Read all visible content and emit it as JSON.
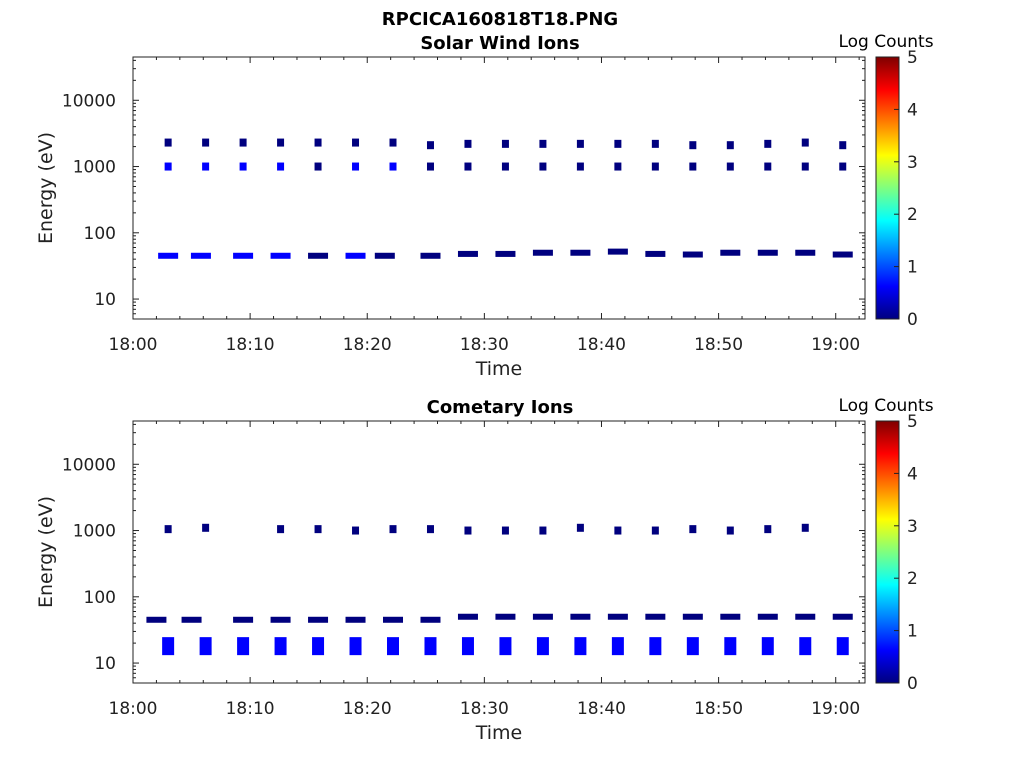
{
  "figure": {
    "title": "RPCICA160818T18.PNG"
  },
  "colorbar": {
    "label": "Log Counts",
    "ticks": [
      "0",
      "1",
      "2",
      "3",
      "4",
      "5"
    ],
    "range": [
      0,
      5
    ],
    "colors": [
      "#00007f",
      "#0000ff",
      "#007fff",
      "#00ffff",
      "#7fff7f",
      "#ffff00",
      "#ff7f00",
      "#ff0000",
      "#7f0000"
    ]
  },
  "marker_color": "#00007f",
  "chart_data": [
    {
      "type": "heatmap",
      "title": "Solar Wind Ions",
      "xlabel": "Time",
      "ylabel": "Energy (eV)",
      "x_ticks": [
        "18:00",
        "18:10",
        "18:20",
        "18:30",
        "18:40",
        "18:50",
        "19:00"
      ],
      "x_range_minutes": [
        0,
        62.5
      ],
      "y_ticks": [
        "10",
        "100",
        "1000",
        "10000"
      ],
      "y_scale": "log",
      "y_range": [
        5,
        45000
      ],
      "grid": false,
      "series": [
        {
          "name": "",
          "minutes": [
            3.0,
            6.2,
            9.4,
            12.6,
            15.8,
            19.0,
            22.2,
            25.4,
            28.6,
            31.8,
            35.0,
            38.2,
            41.4,
            44.6,
            47.8,
            51.0,
            54.2,
            57.4,
            60.6
          ],
          "energy_ev": [
            1000,
            1000,
            1000,
            1000,
            1000,
            1000,
            1000,
            1000,
            1000,
            1000,
            1000,
            1000,
            1000,
            1000,
            1000,
            1000,
            1000,
            1000,
            1000
          ],
          "log_counts": [
            0.5,
            0.5,
            0.5,
            0.5,
            0.3,
            0.5,
            0.5,
            0.3,
            0.3,
            0.3,
            0.3,
            0.3,
            0.3,
            0.3,
            0.3,
            0.3,
            0.3,
            0.3,
            0.3
          ]
        },
        {
          "name": "",
          "minutes": [
            3.0,
            6.2,
            9.4,
            12.6,
            15.8,
            19.0,
            22.2,
            25.4,
            28.6,
            31.8,
            35.0,
            38.2,
            41.4,
            44.6,
            47.8,
            51.0,
            54.2,
            57.4,
            60.6
          ],
          "energy_ev": [
            2300,
            2300,
            2300,
            2300,
            2300,
            2300,
            2300,
            2100,
            2200,
            2200,
            2200,
            2200,
            2200,
            2200,
            2100,
            2100,
            2200,
            2300,
            2100
          ],
          "log_counts": [
            0.3,
            0.3,
            0.3,
            0.3,
            0.2,
            0.3,
            0.3,
            0.2,
            0.2,
            0.2,
            0.2,
            0.2,
            0.2,
            0.2,
            0.2,
            0.2,
            0.2,
            0.2,
            0.2
          ]
        },
        {
          "name": "",
          "minutes": [
            3.0,
            5.8,
            9.4,
            12.6,
            15.8,
            19.0,
            21.5,
            25.4,
            28.6,
            31.8,
            35.0,
            38.2,
            41.4,
            44.6,
            47.8,
            51.0,
            54.2,
            57.4,
            60.6
          ],
          "energy_ev": [
            45,
            45,
            45,
            45,
            45,
            45,
            45,
            45,
            48,
            48,
            50,
            50,
            52,
            48,
            47,
            50,
            50,
            50,
            47
          ],
          "log_counts": [
            0.4,
            0.4,
            0.4,
            0.4,
            0.3,
            0.4,
            0.3,
            0.3,
            0.2,
            0.2,
            0.2,
            0.2,
            0.2,
            0.2,
            0.2,
            0.2,
            0.2,
            0.2,
            0.2
          ]
        }
      ]
    },
    {
      "type": "heatmap",
      "title": "Cometary Ions",
      "xlabel": "Time",
      "ylabel": "Energy (eV)",
      "x_ticks": [
        "18:00",
        "18:10",
        "18:20",
        "18:30",
        "18:40",
        "18:50",
        "19:00"
      ],
      "x_range_minutes": [
        0,
        62.5
      ],
      "y_ticks": [
        "10",
        "100",
        "1000",
        "10000"
      ],
      "y_scale": "log",
      "y_range": [
        5,
        45000
      ],
      "grid": false,
      "series": [
        {
          "name": "",
          "minutes": [
            3.0,
            6.2,
            9.4,
            12.6,
            15.8,
            19.0,
            22.2,
            25.4,
            28.6,
            31.8,
            35.0,
            38.2,
            41.4,
            44.6,
            47.8,
            51.0,
            54.2,
            57.4,
            60.6
          ],
          "energy_ev": [
            18,
            18,
            18,
            18,
            18,
            18,
            18,
            18,
            18,
            18,
            18,
            18,
            18,
            18,
            18,
            18,
            18,
            18,
            18
          ],
          "log_counts": [
            0.5,
            0.5,
            0.5,
            0.5,
            0.5,
            0.5,
            0.5,
            0.5,
            0.5,
            0.5,
            0.5,
            0.5,
            0.5,
            0.5,
            0.5,
            0.5,
            0.5,
            0.5,
            0.5
          ]
        },
        {
          "name": "",
          "minutes": [
            2.0,
            5.0,
            9.4,
            12.6,
            15.8,
            19.0,
            22.2,
            25.4,
            28.6,
            31.8,
            35.0,
            38.2,
            41.4,
            44.6,
            47.8,
            51.0,
            54.2,
            57.4,
            60.6
          ],
          "energy_ev": [
            45,
            45,
            45,
            45,
            45,
            45,
            45,
            45,
            50,
            50,
            50,
            50,
            50,
            50,
            50,
            50,
            50,
            50,
            50
          ],
          "log_counts": [
            0.3,
            0.3,
            0.3,
            0.3,
            0.3,
            0.3,
            0.2,
            0.2,
            0.2,
            0.2,
            0.2,
            0.2,
            0.2,
            0.2,
            0.2,
            0.2,
            0.2,
            0.2,
            0.2
          ]
        },
        {
          "name": "",
          "minutes": [
            3.0,
            6.2,
            12.6,
            15.8,
            19.0,
            22.2,
            25.4,
            28.6,
            31.8,
            35.0,
            38.2,
            41.4,
            44.6,
            47.8,
            51.0,
            54.2,
            57.4
          ],
          "energy_ev": [
            1050,
            1100,
            1050,
            1050,
            1000,
            1050,
            1050,
            1000,
            1000,
            1000,
            1100,
            1000,
            1000,
            1050,
            1000,
            1050,
            1100
          ],
          "log_counts": [
            0.2,
            0.2,
            0.2,
            0.2,
            0.2,
            0.2,
            0.2,
            0.2,
            0.2,
            0.2,
            0.2,
            0.2,
            0.2,
            0.2,
            0.2,
            0.2,
            0.2
          ]
        }
      ]
    }
  ]
}
